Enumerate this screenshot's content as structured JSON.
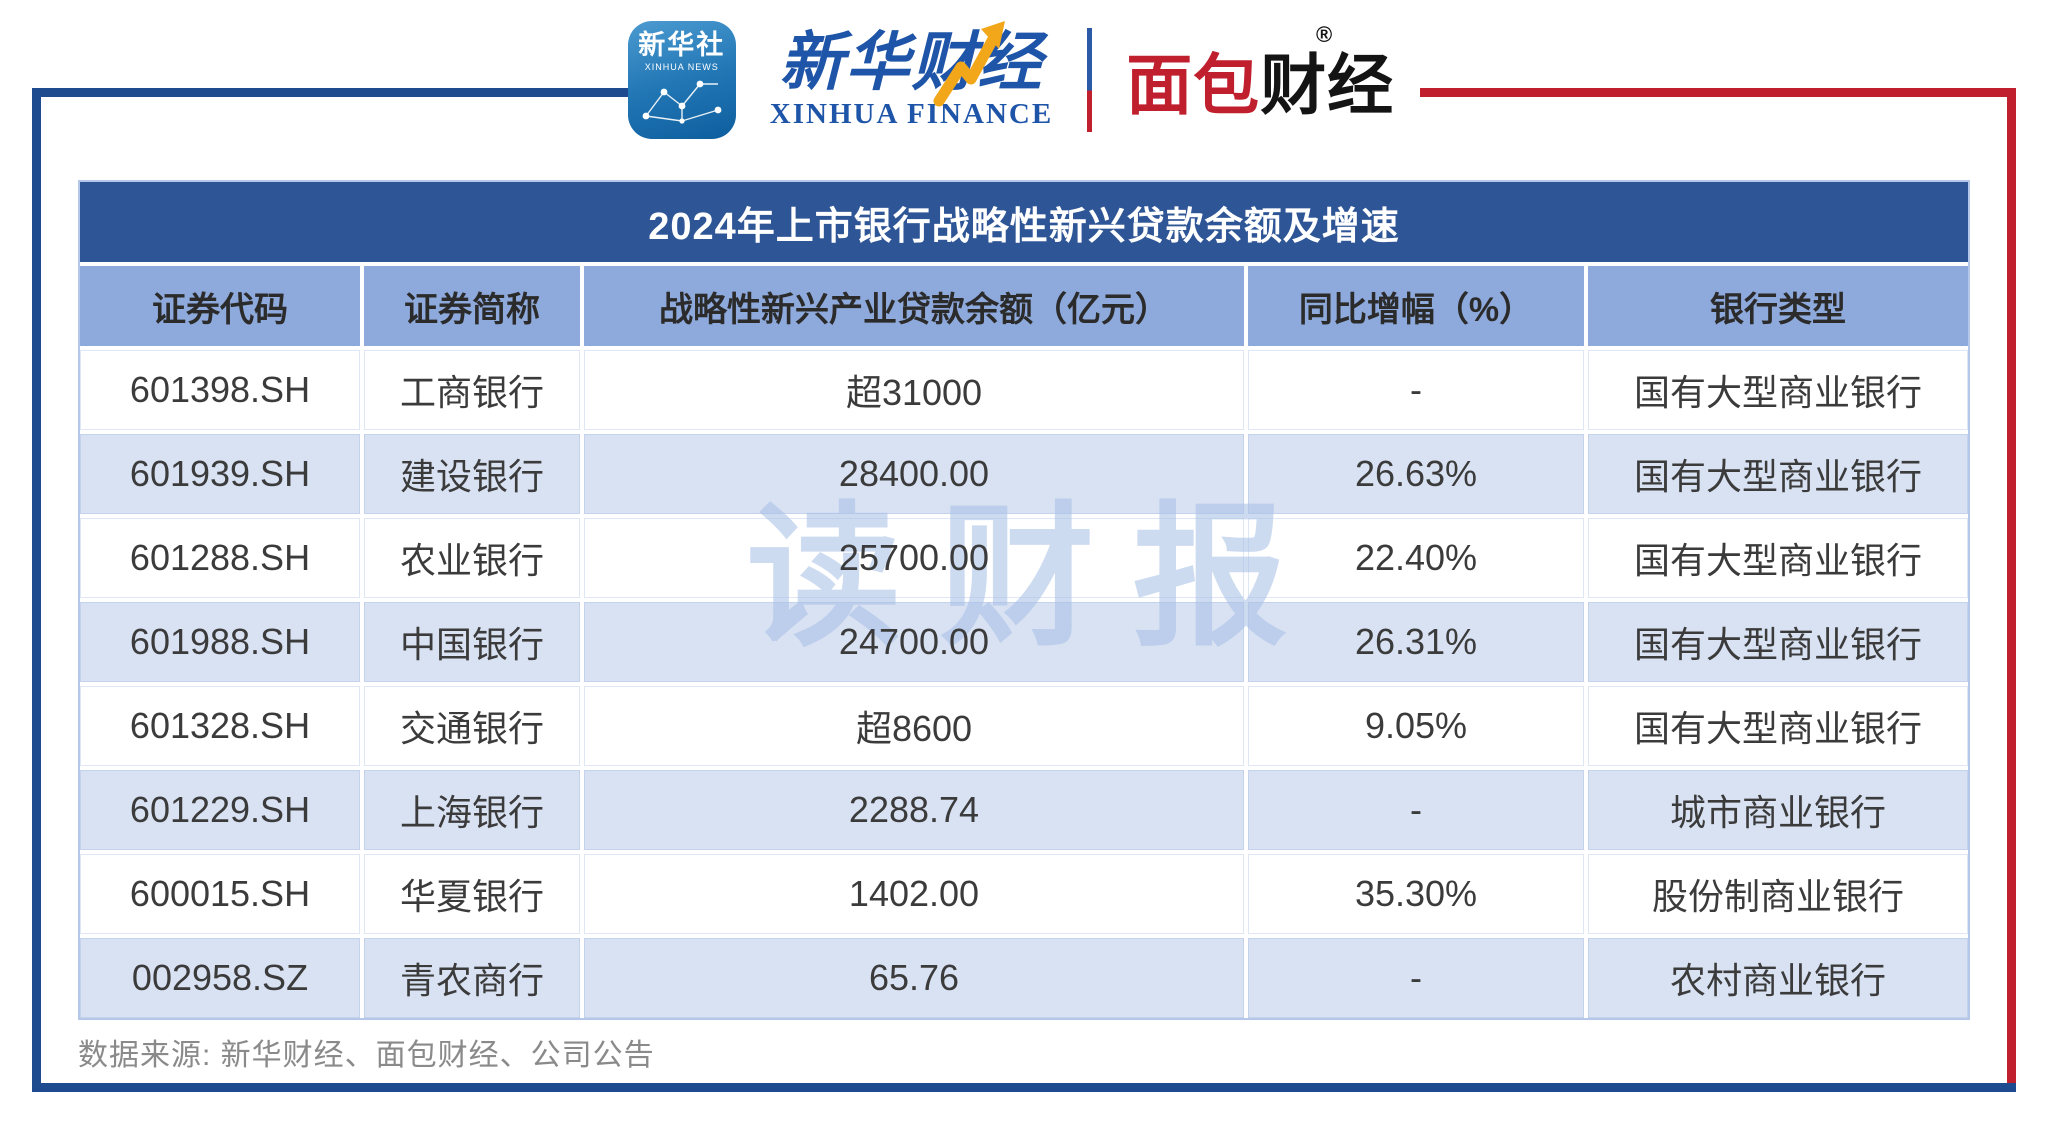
{
  "chart_data": {
    "type": "table",
    "title": "2024年上市银行战略性新兴贷款余额及增速",
    "columns": [
      "证券代码",
      "证券简称",
      "战略性新兴产业贷款余额（亿元）",
      "同比增幅（%）",
      "银行类型"
    ],
    "rows": [
      [
        "601398.SH",
        "工商银行",
        "超31000",
        "-",
        "国有大型商业银行"
      ],
      [
        "601939.SH",
        "建设银行",
        "28400.00",
        "26.63%",
        "国有大型商业银行"
      ],
      [
        "601288.SH",
        "农业银行",
        "25700.00",
        "22.40%",
        "国有大型商业银行"
      ],
      [
        "601988.SH",
        "中国银行",
        "24700.00",
        "26.31%",
        "国有大型商业银行"
      ],
      [
        "601328.SH",
        "交通银行",
        "超8600",
        "9.05%",
        "国有大型商业银行"
      ],
      [
        "601229.SH",
        "上海银行",
        "2288.74",
        "-",
        "城市商业银行"
      ],
      [
        "600015.SH",
        "华夏银行",
        "1402.00",
        "35.30%",
        "股份制商业银行"
      ],
      [
        "002958.SZ",
        "青农商行",
        "65.76",
        "-",
        "农村商业银行"
      ]
    ]
  },
  "masthead": {
    "xinhua_news_icon": {
      "title": "新华社",
      "subtitle": "XINHUA NEWS"
    },
    "xinhua_finance_logo": {
      "cn": "新华财经",
      "en": "XINHUA FINANCE"
    },
    "bread_finance_logo": {
      "cn_red": "面包",
      "cn_black": "财经",
      "registered_mark": "®"
    }
  },
  "watermark": "读财报",
  "footer": {
    "source": "数据来源: 新华财经、面包财经、公司公告"
  },
  "colors": {
    "title_bar_bg": "#2E5596",
    "header_row_bg": "#8EA9DB",
    "alt_row_bg": "#D9E2F3",
    "row_bg": "#FFFFFF",
    "frame_blue": "#1E4B8F",
    "frame_red": "#C0202E",
    "brand_blue": "#1E55A8",
    "brand_gold": "#F2A71B",
    "watermark_color": "#A6BEE6",
    "body_text": "#3B3B3B",
    "footer_text": "#8A8A8A"
  }
}
